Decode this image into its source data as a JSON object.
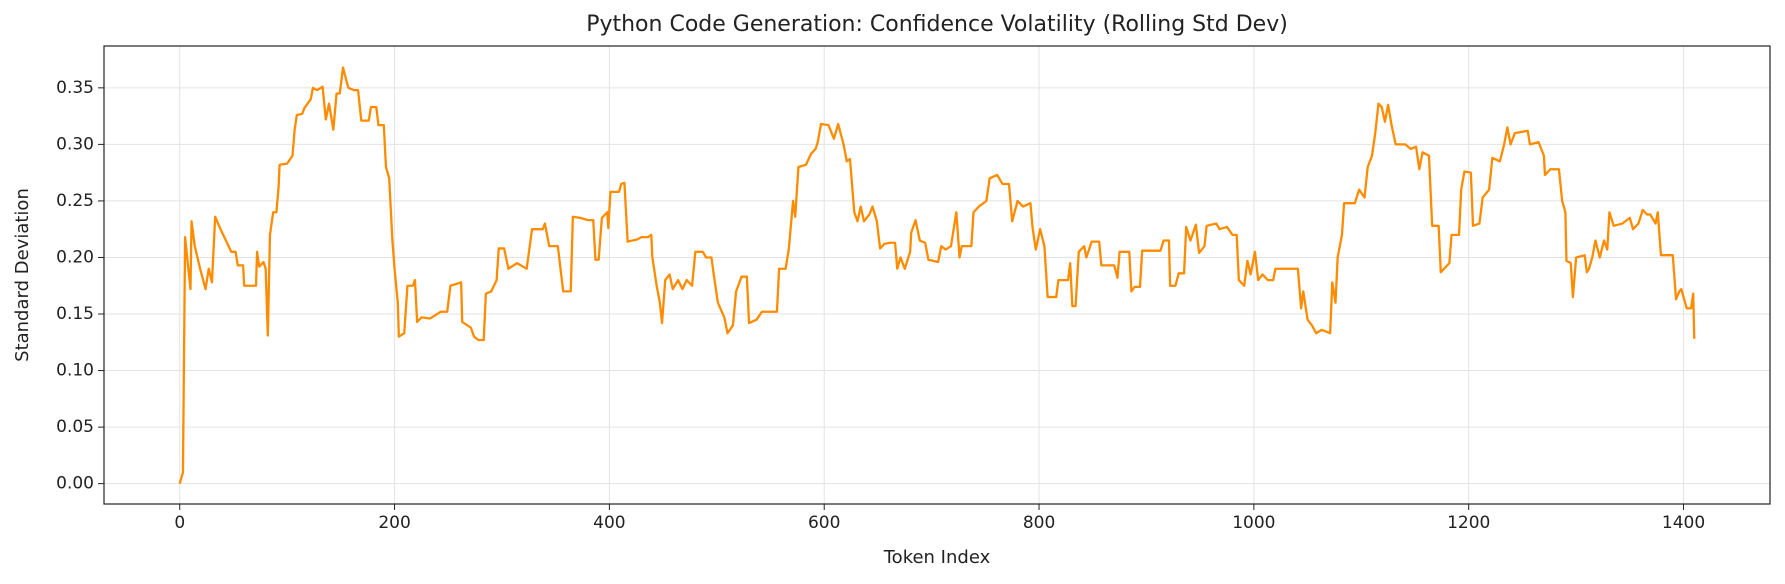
{
  "chart_data": {
    "type": "line",
    "title": "Python Code Generation: Confidence Volatility (Rolling Std Dev)",
    "x_label": "Token Index",
    "y_label": "Standard Deviation",
    "xlim": [
      -70.5,
      1480.5
    ],
    "ylim": [
      -0.018,
      0.387
    ],
    "xticks": [
      0,
      200,
      400,
      600,
      800,
      1000,
      1200,
      1400
    ],
    "yticks": [
      {
        "value": 0,
        "label": "0.00"
      },
      0.05,
      {
        "value": 0.1,
        "label": "0.10"
      },
      0.15,
      {
        "value": 0.2,
        "label": "0.20"
      },
      0.25,
      {
        "value": 0.3,
        "label": "0.30"
      },
      0.35
    ],
    "grid": true,
    "series": [
      {
        "color": "#ff8c00",
        "x": [
          0,
          3,
          5,
          8,
          10,
          11,
          14,
          19,
          24,
          27,
          30,
          33,
          38,
          43,
          48,
          52,
          54,
          59,
          60,
          71,
          72,
          74,
          78,
          80,
          82,
          84,
          87,
          90,
          92,
          93,
          100,
          105,
          107,
          109,
          114,
          116,
          122,
          124,
          128,
          133,
          136,
          139,
          143,
          146,
          149,
          152,
          155,
          157,
          162,
          166,
          169,
          176,
          178,
          183,
          185,
          190,
          192,
          195,
          198,
          200,
          203,
          204,
          209,
          212,
          217,
          219,
          221,
          225,
          233,
          243,
          249,
          252,
          262,
          263,
          271,
          274,
          278,
          283,
          285,
          290,
          295,
          297,
          302,
          306,
          314,
          323,
          328,
          338,
          340,
          344,
          352,
          357,
          364,
          366,
          373,
          380,
          385,
          387,
          390,
          393,
          398,
          399,
          401,
          409,
          411,
          414,
          417,
          426,
          430,
          436,
          439,
          440,
          444,
          447,
          449,
          452,
          456,
          459,
          464,
          468,
          472,
          477,
          480,
          487,
          490,
          495,
          497,
          501,
          507,
          510,
          515,
          518,
          523,
          528,
          530,
          537,
          542,
          556,
          558,
          564,
          567,
          571,
          573,
          576,
          583,
          588,
          592,
          594,
          597,
          604,
          609,
          613,
          618,
          621,
          624,
          628,
          631,
          634,
          637,
          642,
          645,
          649,
          652,
          656,
          661,
          666,
          668,
          671,
          675,
          680,
          681,
          685,
          689,
          694,
          697,
          706,
          709,
          713,
          718,
          723,
          726,
          728,
          737,
          739,
          744,
          751,
          754,
          761,
          766,
          772,
          775,
          780,
          785,
          792,
          794,
          797,
          801,
          805,
          808,
          816,
          818,
          827,
          829,
          831,
          834,
          837,
          842,
          844,
          849,
          856,
          858,
          870,
          873,
          875,
          884,
          886,
          889,
          894,
          896,
          913,
          916,
          921,
          922,
          927,
          930,
          935,
          937,
          941,
          946,
          949,
          954,
          956,
          965,
          968,
          975,
          980,
          984,
          986,
          991,
          994,
          997,
          999,
          1001,
          1004,
          1008,
          1013,
          1018,
          1020,
          1037,
          1041,
          1044,
          1046,
          1050,
          1054,
          1058,
          1063,
          1071,
          1073,
          1076,
          1078,
          1082,
          1084,
          1094,
          1098,
          1103,
          1106,
          1110,
          1113,
          1116,
          1119,
          1122,
          1125,
          1128,
          1132,
          1141,
          1146,
          1151,
          1154,
          1157,
          1163,
          1166,
          1172,
          1174,
          1182,
          1184,
          1191,
          1193,
          1196,
          1202,
          1204,
          1210,
          1213,
          1219,
          1222,
          1229,
          1233,
          1236,
          1239,
          1243,
          1255,
          1257,
          1265,
          1270,
          1271,
          1276,
          1284,
          1287,
          1290,
          1291,
          1295,
          1297,
          1300,
          1308,
          1310,
          1312,
          1315,
          1318,
          1322,
          1326,
          1329,
          1331,
          1335,
          1343,
          1350,
          1353,
          1358,
          1362,
          1366,
          1369,
          1374,
          1376,
          1379,
          1390,
          1393,
          1396,
          1398,
          1400,
          1403,
          1407,
          1409,
          1410
        ],
        "values": [
          0,
          0.01,
          0.218,
          0.19,
          0.172,
          0.232,
          0.21,
          0.19,
          0.172,
          0.19,
          0.178,
          0.236,
          0.225,
          0.215,
          0.205,
          0.205,
          0.193,
          0.193,
          0.175,
          0.175,
          0.205,
          0.192,
          0.196,
          0.19,
          0.131,
          0.22,
          0.24,
          0.24,
          0.262,
          0.282,
          0.283,
          0.29,
          0.313,
          0.326,
          0.327,
          0.332,
          0.34,
          0.35,
          0.348,
          0.351,
          0.322,
          0.336,
          0.313,
          0.345,
          0.345,
          0.368,
          0.357,
          0.35,
          0.348,
          0.348,
          0.321,
          0.321,
          0.333,
          0.333,
          0.317,
          0.317,
          0.28,
          0.27,
          0.215,
          0.19,
          0.16,
          0.13,
          0.133,
          0.175,
          0.175,
          0.18,
          0.143,
          0.147,
          0.146,
          0.152,
          0.152,
          0.175,
          0.178,
          0.143,
          0.138,
          0.13,
          0.127,
          0.127,
          0.168,
          0.17,
          0.18,
          0.208,
          0.208,
          0.19,
          0.195,
          0.19,
          0.225,
          0.225,
          0.23,
          0.21,
          0.21,
          0.17,
          0.17,
          0.236,
          0.235,
          0.233,
          0.233,
          0.198,
          0.198,
          0.235,
          0.24,
          0.226,
          0.258,
          0.258,
          0.265,
          0.266,
          0.214,
          0.216,
          0.218,
          0.218,
          0.22,
          0.2,
          0.175,
          0.16,
          0.142,
          0.18,
          0.185,
          0.172,
          0.18,
          0.172,
          0.18,
          0.175,
          0.205,
          0.205,
          0.2,
          0.2,
          0.186,
          0.16,
          0.147,
          0.133,
          0.14,
          0.17,
          0.183,
          0.183,
          0.142,
          0.145,
          0.152,
          0.152,
          0.19,
          0.19,
          0.207,
          0.25,
          0.236,
          0.28,
          0.282,
          0.292,
          0.296,
          0.302,
          0.318,
          0.317,
          0.305,
          0.318,
          0.3,
          0.285,
          0.287,
          0.24,
          0.232,
          0.245,
          0.232,
          0.238,
          0.245,
          0.232,
          0.208,
          0.212,
          0.213,
          0.213,
          0.19,
          0.2,
          0.19,
          0.205,
          0.222,
          0.233,
          0.215,
          0.213,
          0.198,
          0.196,
          0.21,
          0.207,
          0.21,
          0.24,
          0.2,
          0.21,
          0.21,
          0.24,
          0.245,
          0.25,
          0.27,
          0.273,
          0.265,
          0.265,
          0.232,
          0.25,
          0.245,
          0.248,
          0.226,
          0.207,
          0.225,
          0.21,
          0.165,
          0.165,
          0.18,
          0.18,
          0.195,
          0.157,
          0.157,
          0.205,
          0.21,
          0.2,
          0.214,
          0.214,
          0.193,
          0.193,
          0.182,
          0.205,
          0.205,
          0.17,
          0.174,
          0.174,
          0.206,
          0.206,
          0.215,
          0.215,
          0.175,
          0.175,
          0.186,
          0.186,
          0.227,
          0.215,
          0.229,
          0.204,
          0.21,
          0.228,
          0.23,
          0.225,
          0.227,
          0.22,
          0.22,
          0.18,
          0.175,
          0.197,
          0.185,
          0.195,
          0.205,
          0.18,
          0.185,
          0.18,
          0.18,
          0.19,
          0.19,
          0.19,
          0.155,
          0.17,
          0.145,
          0.14,
          0.133,
          0.136,
          0.133,
          0.178,
          0.16,
          0.2,
          0.22,
          0.248,
          0.248,
          0.26,
          0.253,
          0.28,
          0.29,
          0.31,
          0.336,
          0.333,
          0.32,
          0.335,
          0.318,
          0.3,
          0.3,
          0.296,
          0.298,
          0.278,
          0.293,
          0.29,
          0.228,
          0.228,
          0.187,
          0.195,
          0.22,
          0.22,
          0.26,
          0.276,
          0.275,
          0.228,
          0.23,
          0.253,
          0.26,
          0.288,
          0.285,
          0.3,
          0.315,
          0.3,
          0.31,
          0.312,
          0.3,
          0.302,
          0.29,
          0.273,
          0.278,
          0.278,
          0.25,
          0.24,
          0.197,
          0.195,
          0.165,
          0.2,
          0.202,
          0.187,
          0.19,
          0.2,
          0.215,
          0.2,
          0.215,
          0.207,
          0.24,
          0.228,
          0.23,
          0.235,
          0.225,
          0.23,
          0.242,
          0.238,
          0.238,
          0.23,
          0.24,
          0.202,
          0.202,
          0.163,
          0.17,
          0.172,
          0.165,
          0.155,
          0.155,
          0.168,
          0.128
        ]
      }
    ]
  }
}
